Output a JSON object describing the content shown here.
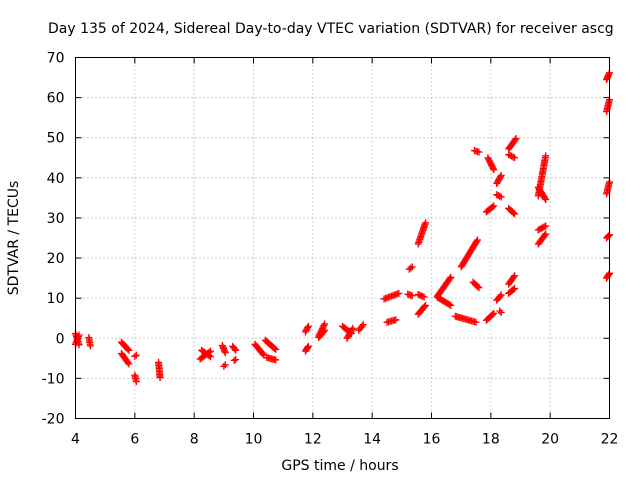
{
  "chart_data": {
    "type": "scatter",
    "title": "Day 135 of 2024, Sidereal Day-to-day VTEC variation (SDTVAR) for receiver ascg",
    "xlabel": "GPS time / hours",
    "ylabel": "SDTVAR / TECUs",
    "xlim": [
      4,
      22
    ],
    "ylim": [
      -20,
      70
    ],
    "xticks": [
      4,
      6,
      8,
      10,
      12,
      14,
      16,
      18,
      20,
      22
    ],
    "yticks": [
      -20,
      -10,
      0,
      10,
      20,
      30,
      40,
      50,
      60,
      70
    ],
    "grid": true,
    "marker": "plus",
    "series_color": "#ff0000",
    "segments": [
      {
        "x": [
          4.0,
          4.12
        ],
        "y": [
          1.2,
          -1.6
        ]
      },
      {
        "x": [
          4.0,
          4.12
        ],
        "y": [
          -1.5,
          0.8
        ]
      },
      {
        "x": [
          4.45,
          4.5
        ],
        "y": [
          0.2,
          -1.9
        ]
      },
      {
        "x": [
          5.55,
          5.8
        ],
        "y": [
          -1.0,
          -3.0
        ]
      },
      {
        "x": [
          5.55,
          5.8
        ],
        "y": [
          -3.8,
          -6.4
        ]
      },
      {
        "x": [
          6.0,
          6.05
        ],
        "y": [
          -4.5,
          -4.2
        ]
      },
      {
        "x": [
          6.0,
          6.05
        ],
        "y": [
          -9.2,
          -10.8
        ]
      },
      {
        "x": [
          6.8,
          6.85
        ],
        "y": [
          -6.0,
          -9.8
        ]
      },
      {
        "x": [
          8.2,
          8.55
        ],
        "y": [
          -5.2,
          -3.2
        ]
      },
      {
        "x": [
          8.25,
          8.55
        ],
        "y": [
          -3.0,
          -4.6
        ]
      },
      {
        "x": [
          8.95,
          9.05
        ],
        "y": [
          -1.8,
          -3.6
        ]
      },
      {
        "x": [
          9.0,
          9.05
        ],
        "y": [
          -7.0,
          -6.6
        ]
      },
      {
        "x": [
          9.3,
          9.4
        ],
        "y": [
          -2.0,
          -3.0
        ]
      },
      {
        "x": [
          9.35,
          9.4
        ],
        "y": [
          -5.5,
          -5.3
        ]
      },
      {
        "x": [
          10.05,
          10.35
        ],
        "y": [
          -1.5,
          -4.2
        ]
      },
      {
        "x": [
          10.4,
          10.75
        ],
        "y": [
          -0.5,
          -2.8
        ]
      },
      {
        "x": [
          10.45,
          10.75
        ],
        "y": [
          -4.8,
          -5.4
        ]
      },
      {
        "x": [
          11.75,
          11.85
        ],
        "y": [
          -3.2,
          -2.0
        ]
      },
      {
        "x": [
          11.75,
          11.85
        ],
        "y": [
          1.6,
          3.0
        ]
      },
      {
        "x": [
          12.2,
          12.4
        ],
        "y": [
          0.6,
          3.6
        ]
      },
      {
        "x": [
          12.2,
          12.4
        ],
        "y": [
          0.2,
          2.0
        ]
      },
      {
        "x": [
          13.0,
          13.3
        ],
        "y": [
          3.0,
          1.2
        ]
      },
      {
        "x": [
          13.15,
          13.35
        ],
        "y": [
          0.0,
          2.5
        ]
      },
      {
        "x": [
          13.55,
          13.7
        ],
        "y": [
          2.0,
          3.4
        ]
      },
      {
        "x": [
          14.4,
          14.9
        ],
        "y": [
          9.8,
          11.2
        ]
      },
      {
        "x": [
          14.5,
          14.8
        ],
        "y": [
          4.0,
          4.6
        ]
      },
      {
        "x": [
          15.2,
          15.35
        ],
        "y": [
          11.0,
          10.6
        ]
      },
      {
        "x": [
          15.25,
          15.35
        ],
        "y": [
          17.2,
          17.8
        ]
      },
      {
        "x": [
          15.55,
          15.8
        ],
        "y": [
          23.5,
          28.8
        ]
      },
      {
        "x": [
          15.55,
          15.8
        ],
        "y": [
          6.0,
          8.2
        ]
      },
      {
        "x": [
          15.55,
          15.75
        ],
        "y": [
          10.9,
          10.3
        ]
      },
      {
        "x": [
          16.2,
          16.65
        ],
        "y": [
          10.5,
          15.2
        ]
      },
      {
        "x": [
          16.2,
          16.65
        ],
        "y": [
          10.2,
          8.2
        ]
      },
      {
        "x": [
          16.8,
          17.5
        ],
        "y": [
          5.5,
          4.0
        ]
      },
      {
        "x": [
          17.0,
          17.55
        ],
        "y": [
          17.8,
          24.5
        ]
      },
      {
        "x": [
          17.4,
          17.6
        ],
        "y": [
          14.0,
          12.6
        ]
      },
      {
        "x": [
          17.45,
          17.6
        ],
        "y": [
          46.8,
          46.4
        ]
      },
      {
        "x": [
          17.85,
          18.1
        ],
        "y": [
          4.5,
          6.2
        ]
      },
      {
        "x": [
          17.85,
          18.1
        ],
        "y": [
          31.5,
          33.0
        ]
      },
      {
        "x": [
          17.9,
          18.1
        ],
        "y": [
          45.0,
          42.0
        ]
      },
      {
        "x": [
          18.2,
          18.35
        ],
        "y": [
          9.5,
          10.8
        ]
      },
      {
        "x": [
          18.2,
          18.35
        ],
        "y": [
          35.8,
          35.2
        ]
      },
      {
        "x": [
          18.2,
          18.35
        ],
        "y": [
          38.6,
          40.6
        ]
      },
      {
        "x": [
          18.3,
          18.35
        ],
        "y": [
          6.8,
          6.4
        ]
      },
      {
        "x": [
          18.6,
          18.8
        ],
        "y": [
          11.2,
          12.4
        ]
      },
      {
        "x": [
          18.6,
          18.8
        ],
        "y": [
          13.5,
          15.6
        ]
      },
      {
        "x": [
          18.6,
          18.8
        ],
        "y": [
          32.4,
          31.0
        ]
      },
      {
        "x": [
          18.6,
          18.8
        ],
        "y": [
          45.8,
          45.0
        ]
      },
      {
        "x": [
          18.6,
          18.85
        ],
        "y": [
          47.2,
          49.8
        ]
      },
      {
        "x": [
          19.6,
          19.85
        ],
        "y": [
          23.5,
          26.0
        ]
      },
      {
        "x": [
          19.6,
          19.85
        ],
        "y": [
          27.0,
          28.0
        ]
      },
      {
        "x": [
          19.6,
          19.85
        ],
        "y": [
          35.5,
          45.5
        ]
      },
      {
        "x": [
          19.6,
          19.85
        ],
        "y": [
          37.6,
          34.6
        ]
      },
      {
        "x": [
          21.9,
          22.0
        ],
        "y": [
          15.0,
          16.2
        ]
      },
      {
        "x": [
          21.9,
          22.0
        ],
        "y": [
          25.0,
          25.8
        ]
      },
      {
        "x": [
          21.9,
          22.0
        ],
        "y": [
          36.0,
          39.0
        ]
      },
      {
        "x": [
          21.9,
          22.0
        ],
        "y": [
          56.5,
          59.5
        ]
      },
      {
        "x": [
          21.9,
          22.0
        ],
        "y": [
          64.5,
          66.2
        ]
      }
    ]
  }
}
